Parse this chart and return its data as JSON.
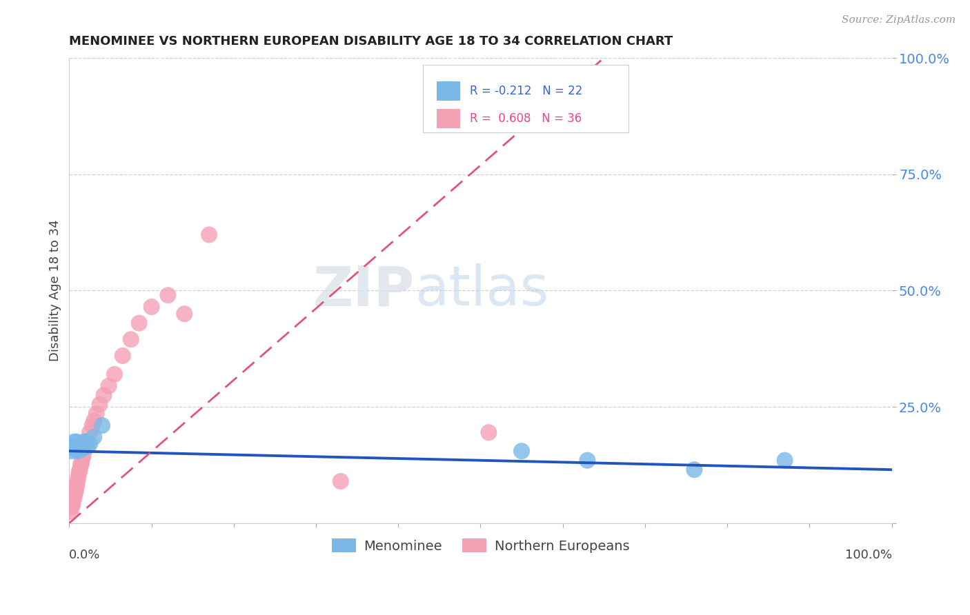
{
  "title": "MENOMINEE VS NORTHERN EUROPEAN DISABILITY AGE 18 TO 34 CORRELATION CHART",
  "source": "Source: ZipAtlas.com",
  "ylabel": "Disability Age 18 to 34",
  "background_color": "#ffffff",
  "watermark_zip": "ZIP",
  "watermark_atlas": "atlas",
  "R_menominee": -0.212,
  "N_menominee": 22,
  "R_northern": 0.608,
  "N_northern": 36,
  "menominee_color": "#7ab8e8",
  "northern_color": "#f4a0b5",
  "regression_blue_color": "#2255bb",
  "regression_pink_color": "#e05575",
  "legend_blue_text": "R = -0.212   N = 22",
  "legend_pink_text": "R =  0.608   N = 36",
  "legend_menominee_label": "Menominee",
  "legend_northern_label": "Northern Europeans",
  "ytick_labels": [
    "",
    "25.0%",
    "50.0%",
    "75.0%",
    "100.0%"
  ],
  "ytick_values": [
    0.0,
    0.25,
    0.5,
    0.75,
    1.0
  ],
  "xlim": [
    0.0,
    1.0
  ],
  "ylim": [
    0.0,
    1.0
  ],
  "blue_line_x": [
    0.0,
    1.0
  ],
  "blue_line_y": [
    0.155,
    0.115
  ],
  "pink_line_x": [
    0.0,
    0.65
  ],
  "pink_line_y": [
    0.0,
    1.0
  ],
  "menominee_x": [
    0.003,
    0.005,
    0.006,
    0.007,
    0.008,
    0.009,
    0.01,
    0.011,
    0.012,
    0.013,
    0.014,
    0.016,
    0.018,
    0.02,
    0.022,
    0.025,
    0.03,
    0.04,
    0.55,
    0.63,
    0.76,
    0.87
  ],
  "menominee_y": [
    0.155,
    0.165,
    0.175,
    0.16,
    0.165,
    0.175,
    0.16,
    0.155,
    0.165,
    0.17,
    0.165,
    0.16,
    0.175,
    0.175,
    0.165,
    0.17,
    0.185,
    0.21,
    0.155,
    0.135,
    0.115,
    0.135
  ],
  "northern_x": [
    0.002,
    0.003,
    0.004,
    0.005,
    0.006,
    0.007,
    0.008,
    0.009,
    0.01,
    0.011,
    0.012,
    0.013,
    0.014,
    0.015,
    0.016,
    0.017,
    0.018,
    0.02,
    0.022,
    0.025,
    0.028,
    0.03,
    0.033,
    0.037,
    0.042,
    0.048,
    0.055,
    0.065,
    0.075,
    0.085,
    0.1,
    0.12,
    0.14,
    0.17,
    0.51,
    0.33
  ],
  "northern_y": [
    0.025,
    0.035,
    0.04,
    0.05,
    0.055,
    0.065,
    0.07,
    0.08,
    0.09,
    0.1,
    0.11,
    0.115,
    0.125,
    0.13,
    0.14,
    0.145,
    0.155,
    0.165,
    0.175,
    0.195,
    0.21,
    0.22,
    0.235,
    0.255,
    0.275,
    0.295,
    0.32,
    0.36,
    0.395,
    0.43,
    0.465,
    0.49,
    0.45,
    0.62,
    0.195,
    0.09
  ]
}
